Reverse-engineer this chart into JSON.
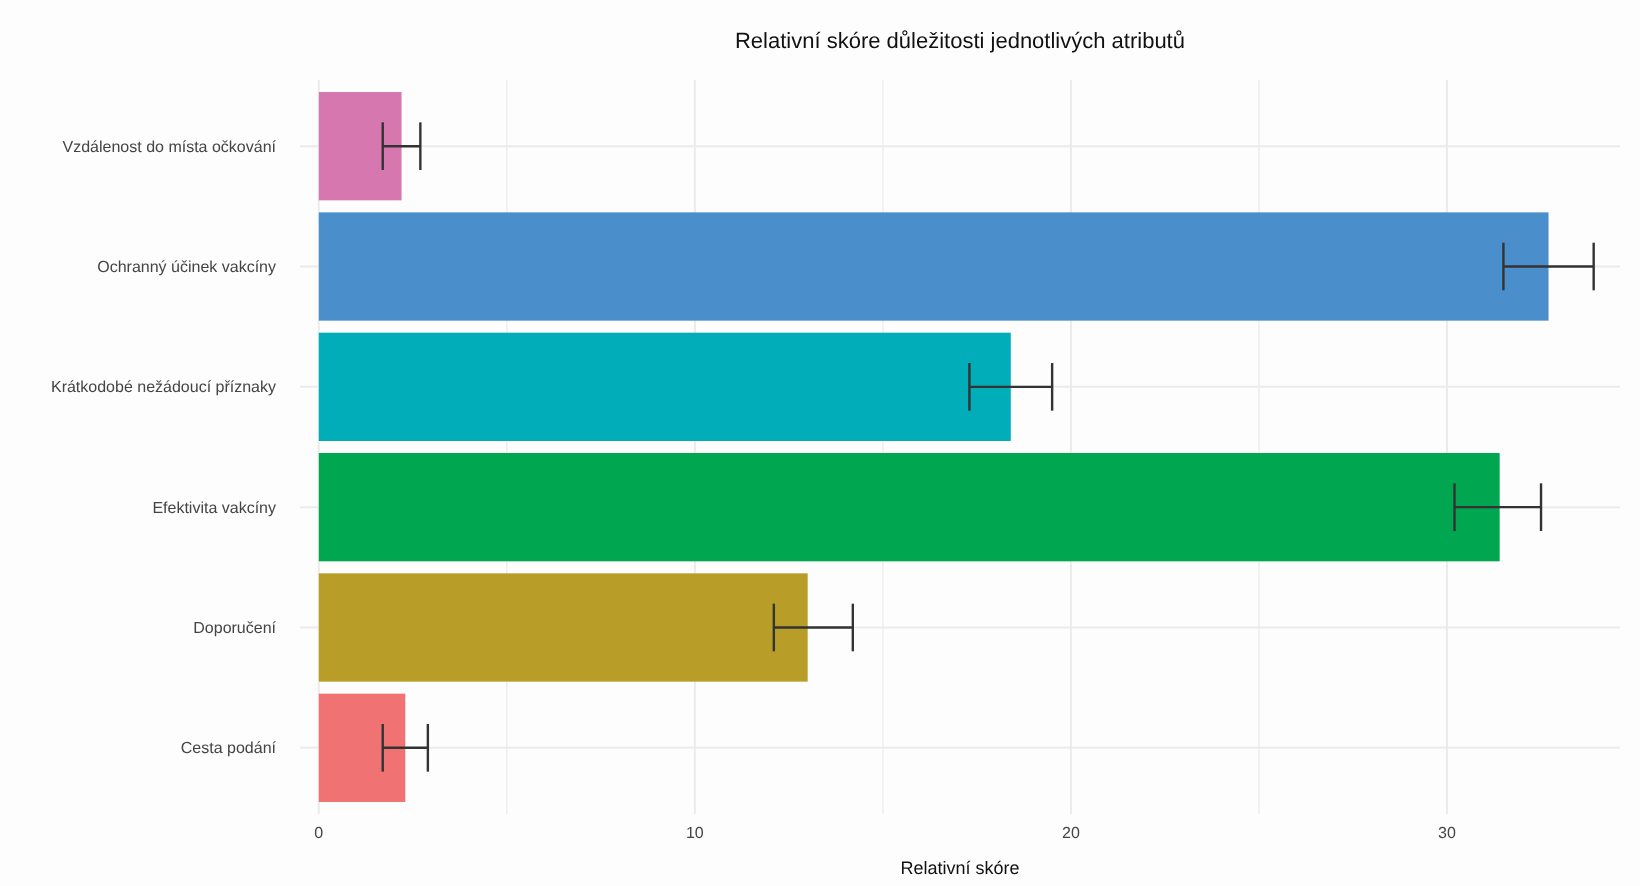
{
  "chart_data": {
    "type": "bar",
    "orientation": "horizontal",
    "title": "Relativní skóre důležitosti jednotlivých atributů",
    "xlabel": "Relativní skóre",
    "categories": [
      "Vzdálenost do místa očkování",
      "Ochranný účinek vakcíny",
      "Krátkodobé nežádoucí příznaky",
      "Efektivita vakcíny",
      "Doporučení",
      "Cesta podání"
    ],
    "values": [
      2.2,
      32.7,
      18.4,
      31.4,
      13.0,
      2.3
    ],
    "errors": [
      [
        1.7,
        2.7
      ],
      [
        31.5,
        33.9
      ],
      [
        17.3,
        19.5
      ],
      [
        30.2,
        32.5
      ],
      [
        12.1,
        14.2
      ],
      [
        1.7,
        2.9
      ]
    ],
    "colors": [
      "#d677b0",
      "#4a8fcc",
      "#00adb8",
      "#00a650",
      "#b89e28",
      "#f07272"
    ],
    "xlim": [
      -0.5,
      34.6
    ],
    "xticks": [
      0,
      {
        "value": 5,
        "label": null
      },
      10,
      {
        "value": 15,
        "label": null
      },
      20,
      {
        "value": 25,
        "label": null
      },
      30
    ],
    "grid": true
  }
}
